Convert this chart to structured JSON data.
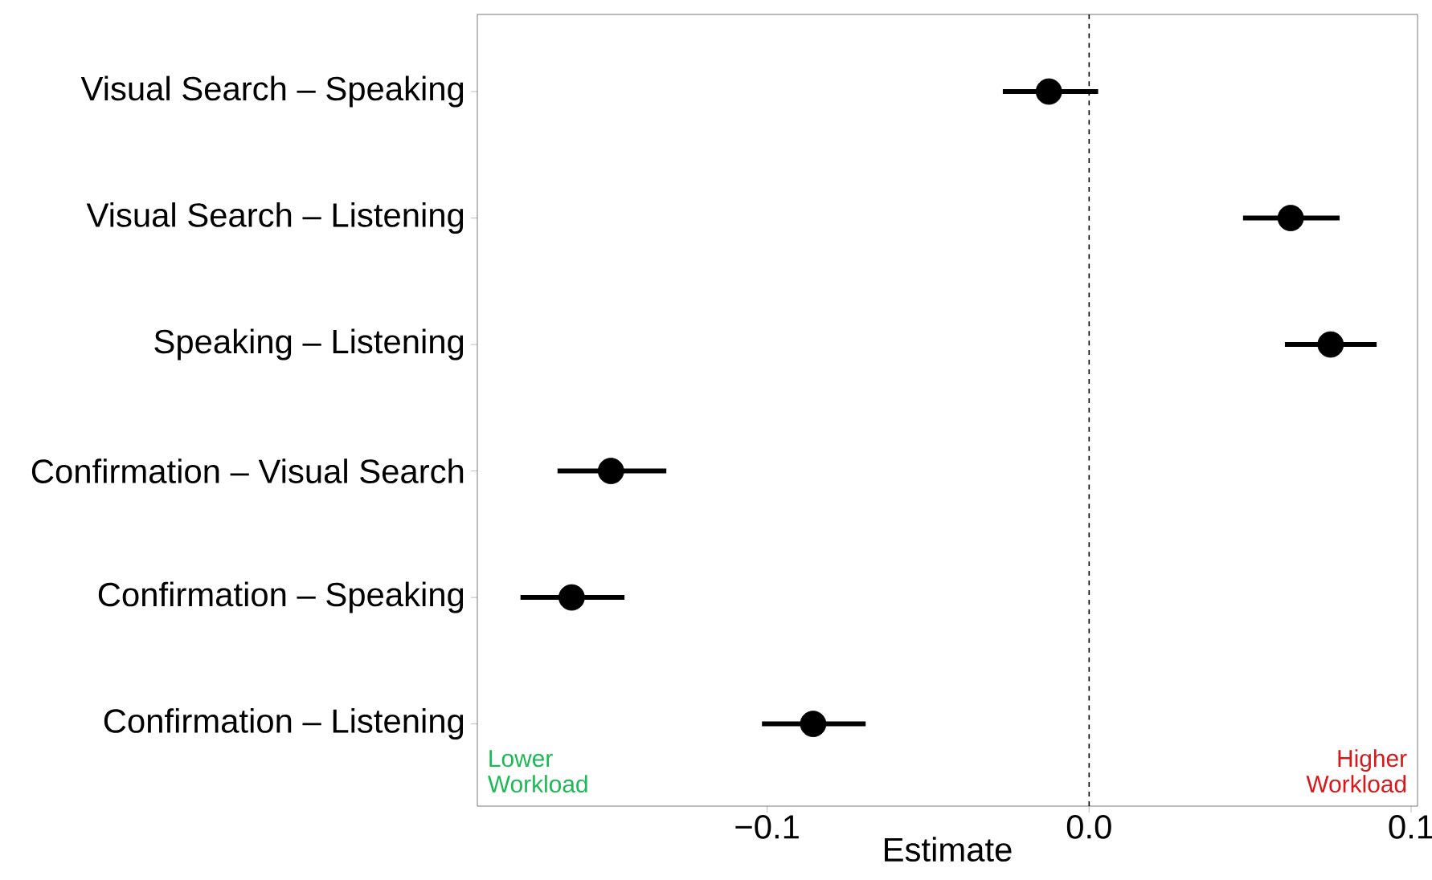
{
  "chart_data": {
    "type": "scatter",
    "orientation": "horizontal",
    "marker": "circle",
    "xlabel": "Estimate",
    "categories": [
      "Visual Search – Speaking",
      "Visual Search – Listening",
      "Speaking – Listening",
      "Confirmation – Visual Search",
      "Confirmation – Speaking",
      "Confirmation – Listening"
    ],
    "values": [
      -0.0125,
      0.0626,
      0.075,
      -0.1485,
      -0.1607,
      -0.0857
    ],
    "errors": [
      [
        -0.0268,
        0.0028
      ],
      [
        0.0478,
        0.0778
      ],
      [
        0.0608,
        0.0893
      ],
      [
        -0.1651,
        -0.1313
      ],
      [
        -0.1766,
        -0.1443
      ],
      [
        -0.1016,
        -0.0694
      ]
    ],
    "color": "#000000",
    "xlim": [
      -0.19,
      0.102
    ],
    "xticks": [
      {
        "value": -0.1,
        "label": "−0.1"
      },
      {
        "value": 0,
        "label": "0.0"
      },
      {
        "value": 0.1,
        "label": "0.1"
      }
    ],
    "ref_lines": [
      {
        "axis": "x",
        "value": 0,
        "line_style": "dashed",
        "color": "#000000"
      }
    ],
    "annotations": [
      "Lower Workload",
      "Higher Workload"
    ]
  }
}
